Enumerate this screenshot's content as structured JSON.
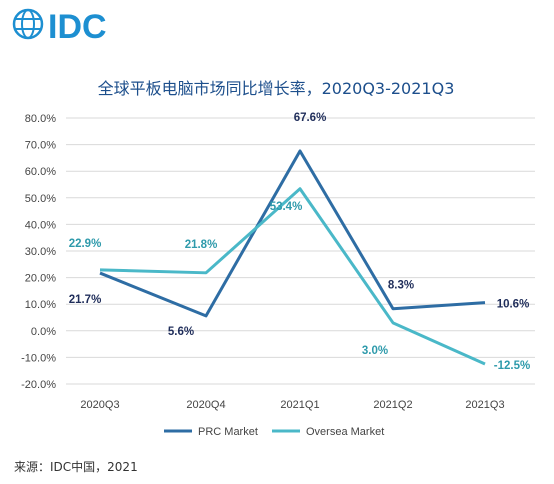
{
  "logo": {
    "text": "IDC"
  },
  "source": "来源：IDC中国，2021",
  "chart_data": {
    "type": "line",
    "title": "全球平板电脑市场同比增长率，2020Q3-2021Q3",
    "categories": [
      "2020Q3",
      "2020Q4",
      "2021Q1",
      "2021Q2",
      "2021Q3"
    ],
    "ylim": [
      -20,
      80
    ],
    "yticks": [
      -20,
      -10,
      0,
      10,
      20,
      30,
      40,
      50,
      60,
      70,
      80
    ],
    "ytick_labels": [
      "-20.0%",
      "-10.0%",
      "0.0%",
      "10.0%",
      "20.0%",
      "30.0%",
      "40.0%",
      "50.0%",
      "60.0%",
      "70.0%",
      "80.0%"
    ],
    "grid": true,
    "legend_position": "bottom",
    "series": [
      {
        "name": "PRC Market",
        "color": "#2e6da4",
        "values": [
          21.7,
          5.6,
          67.6,
          8.3,
          10.6
        ],
        "labels": [
          "21.7%",
          "5.6%",
          "67.6%",
          "8.3%",
          "10.6%"
        ]
      },
      {
        "name": "Oversea Market",
        "color": "#4ab8c8",
        "values": [
          22.9,
          21.8,
          53.4,
          3.0,
          -12.5
        ],
        "labels": [
          "22.9%",
          "21.8%",
          "53.4%",
          "3.0%",
          "-12.5%"
        ]
      }
    ]
  }
}
